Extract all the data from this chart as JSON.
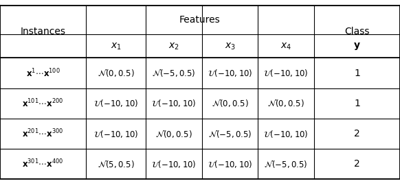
{
  "title": "",
  "col_headers_row1": [
    "Instances",
    "Features",
    "",
    "",
    "",
    "Class"
  ],
  "col_headers_row2": [
    "",
    "$x_1$",
    "$x_2$",
    "$x_3$",
    "$x_4$",
    "$\\mathbf{y}$"
  ],
  "rows": [
    [
      "$\\mathbf{x}^1 \\cdots \\mathbf{x}^{100}$",
      "$\\mathcal{N}(0,0.5)$",
      "$\\mathcal{N}(-5,0.5)$",
      "$\\mathcal{U}(-10,10)$",
      "$\\mathcal{U}(-10,10)$",
      "1"
    ],
    [
      "$\\mathbf{x}^{101} \\cdots \\mathbf{x}^{200}$",
      "$\\mathcal{U}(-10,10)$",
      "$\\mathcal{U}(-10,10)$",
      "$\\mathcal{N}(0,0.5)$",
      "$\\mathcal{N}(0,0.5)$",
      "1"
    ],
    [
      "$\\mathbf{x}^{201} \\cdots \\mathbf{x}^{300}$",
      "$\\mathcal{U}(-10,10)$",
      "$\\mathcal{N}(0,0.5)$",
      "$\\mathcal{N}(-5,0.5)$",
      "$\\mathcal{U}(-10,10)$",
      "2"
    ],
    [
      "$\\mathbf{x}^{301} \\cdots \\mathbf{x}^{400}$",
      "$\\mathcal{N}(5,0.5)$",
      "$\\mathcal{U}(-10,10)$",
      "$\\mathcal{U}(-10,10)$",
      "$\\mathcal{N}(-5,0.5)$",
      "2"
    ]
  ],
  "background_color": "#ffffff",
  "border_color": "#000000"
}
